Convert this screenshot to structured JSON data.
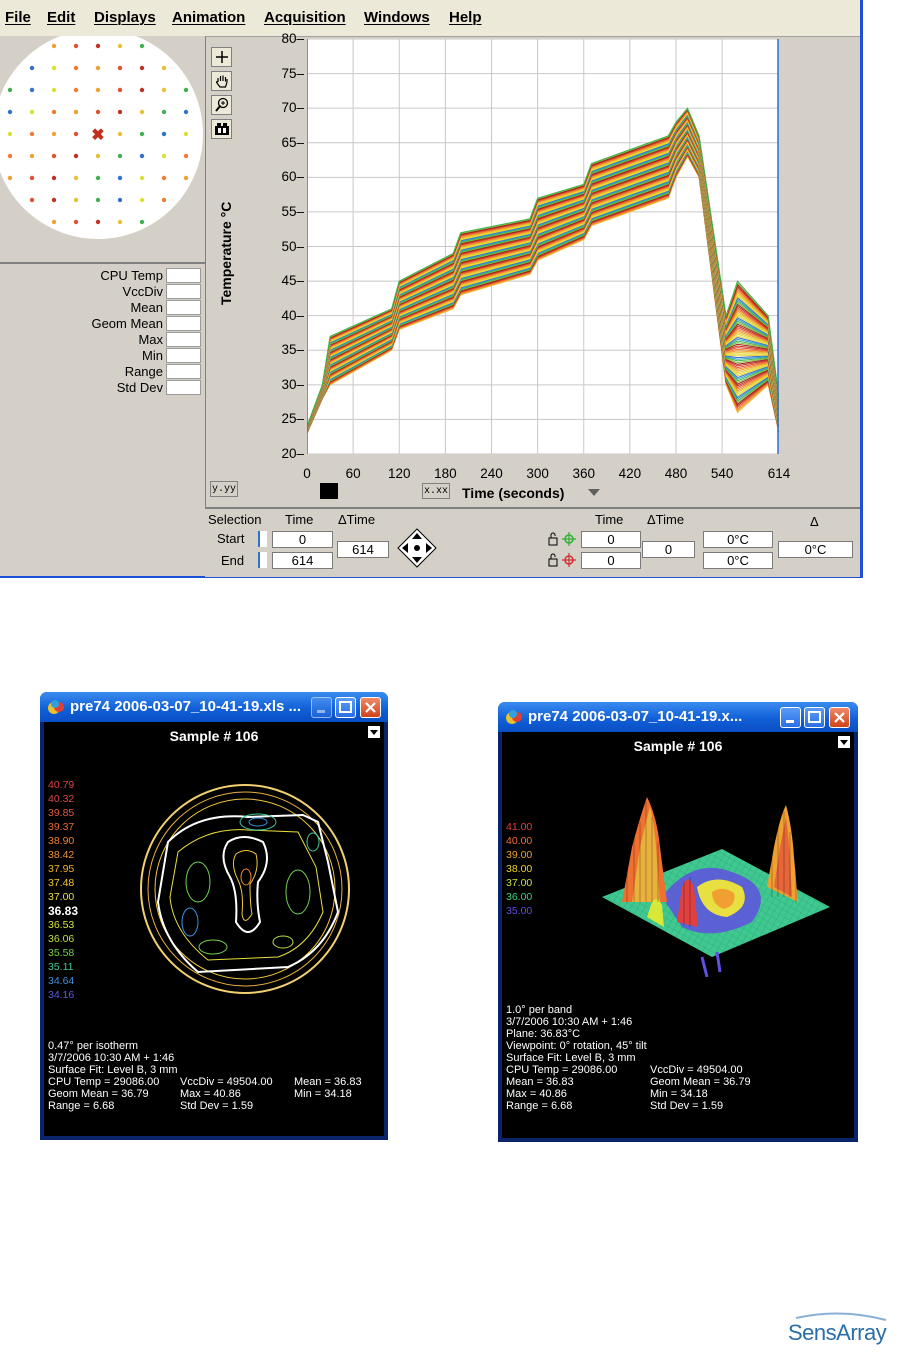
{
  "menu": [
    "File",
    "Edit",
    "Displays",
    "Animation",
    "Acquisition",
    "Windows",
    "Help"
  ],
  "stats": {
    "labels": [
      "CPU Temp",
      "VccDiv",
      "Mean",
      "Geom Mean",
      "Max",
      "Min",
      "Range",
      "Std Dev"
    ]
  },
  "toolbar": {
    "add_icon": "crosshair-icon",
    "pan_icon": "hand-icon",
    "zoom_icon": "magnifier-icon",
    "camera_icon": "camera-icon",
    "y_scale_label": "y.yy",
    "x_scale_label": "x.xx"
  },
  "chart_data": {
    "type": "line",
    "title": "",
    "xlabel": "Time (seconds)",
    "ylabel": "Temperature °C",
    "xlim": [
      0,
      614
    ],
    "ylim": [
      20,
      80
    ],
    "x_ticks": [
      "0",
      "60",
      "120",
      "180",
      "240",
      "300",
      "360",
      "420",
      "480",
      "540",
      "614"
    ],
    "y_ticks": [
      "20",
      "25",
      "30",
      "35",
      "40",
      "45",
      "50",
      "55",
      "60",
      "65",
      "70",
      "75",
      "80"
    ],
    "grid": true,
    "envelope": {
      "x": [
        0,
        20,
        30,
        110,
        120,
        190,
        200,
        290,
        300,
        360,
        370,
        470,
        480,
        495,
        510,
        545,
        560,
        600,
        614
      ],
      "upper": [
        24,
        30,
        37,
        41,
        45,
        49,
        52,
        54,
        57,
        59,
        62,
        66,
        68,
        70,
        66,
        40,
        45,
        40,
        28
      ],
      "lower": [
        23,
        28,
        30,
        35,
        38,
        41,
        43,
        46,
        48,
        51,
        53,
        57,
        60,
        63,
        60,
        30,
        26,
        30,
        23
      ]
    },
    "series_count_approx": 80
  },
  "selection": {
    "title": "Selection",
    "time_header": "Time",
    "dtime_header": "ΔTime",
    "start_label": "Start",
    "end_label": "End",
    "start_time": "0",
    "end_time": "614",
    "dtime": "614",
    "cursor_time_header": "Time",
    "cursor_dtime_header": "ΔTime",
    "delta_header": "Δ",
    "cursor1_time": "0",
    "cursor2_time": "0",
    "cursor_dtime": "0",
    "cursor1_temp": "0°C",
    "cursor2_temp": "0°C",
    "delta_temp": "0°C"
  },
  "contour_window": {
    "title": "pre74 2006-03-07_10-41-19.xls ...",
    "sample": "Sample # 106",
    "legend": [
      {
        "v": "40.79",
        "c": "#e04040"
      },
      {
        "v": "40.32",
        "c": "#e04848"
      },
      {
        "v": "39.85",
        "c": "#e05a40"
      },
      {
        "v": "39.37",
        "c": "#e86a30"
      },
      {
        "v": "38.90",
        "c": "#f08030"
      },
      {
        "v": "38.42",
        "c": "#f09030"
      },
      {
        "v": "37.95",
        "c": "#f0b030"
      },
      {
        "v": "37.48",
        "c": "#f0c830"
      },
      {
        "v": "37.00",
        "c": "#e8e040"
      },
      {
        "v": "36.83",
        "c": "#ffffff"
      },
      {
        "v": "36.53",
        "c": "#d8e838"
      },
      {
        "v": "36.06",
        "c": "#b8e040"
      },
      {
        "v": "35.58",
        "c": "#70d050"
      },
      {
        "v": "35.11",
        "c": "#40c8a0"
      },
      {
        "v": "34.64",
        "c": "#4090e0"
      },
      {
        "v": "34.16",
        "c": "#5a5ae0"
      }
    ],
    "info": [
      "0.47° per isotherm",
      "3/7/2006 10:30 AM + 1:46",
      "Surface Fit: Level B, 3 mm",
      "CPU Temp = 29086.00",
      "VccDiv = 49504.00",
      "Mean = 36.83",
      "Geom Mean = 36.79",
      "Max = 40.86",
      "Min = 34.18",
      "Range = 6.68",
      "Std Dev = 1.59"
    ]
  },
  "surface_window": {
    "title": "pre74 2006-03-07_10-41-19.x...",
    "sample": "Sample # 106",
    "legend": [
      {
        "v": "41.00",
        "c": "#e04040"
      },
      {
        "v": "40.00",
        "c": "#f07030"
      },
      {
        "v": "39.00",
        "c": "#f0a030"
      },
      {
        "v": "38.00",
        "c": "#f0d030"
      },
      {
        "v": "37.00",
        "c": "#c8e040"
      },
      {
        "v": "36.00",
        "c": "#40d080"
      },
      {
        "v": "35.00",
        "c": "#6050e0"
      }
    ],
    "info": [
      "1.0° per band",
      "3/7/2006 10:30 AM + 1:46",
      "Plane: 36.83°C",
      "Viewpoint: 0° rotation, 45° tilt",
      "Surface Fit: Level B, 3 mm",
      "CPU Temp = 29086.00",
      "VccDiv = 49504.00",
      "Mean = 36.83",
      "Geom Mean = 36.79",
      "Max = 40.86",
      "Min = 34.18",
      "Range = 6.68",
      "Std Dev = 1.59"
    ]
  },
  "logo": "SensArray"
}
